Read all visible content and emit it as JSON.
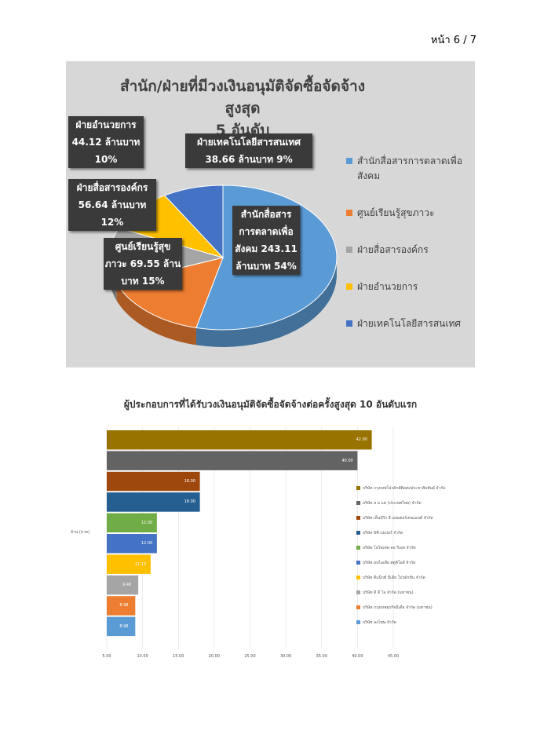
{
  "page": {
    "number": "หน้า 6 / 7"
  },
  "chart_data": [
    {
      "type": "pie",
      "title": "สำนัก/ฝ่ายที่มีวงเงินอนุมัติจัดซื้อจัดจ้างสูงสุด 5 อันดับ",
      "title_line1": "สำนัก/ฝ่ายที่มีวงเงินอนุมัติจัดซื้อจัดจ้างสูงสุด",
      "title_line2": "5 อันดับ",
      "unit": "ล้านบาท",
      "legend_position": "right",
      "slices": [
        {
          "name": "สำนักสื่อสารการตลาดเพื่อสังคม",
          "value": 243.11,
          "percent": 54,
          "color": "#5b9bd5",
          "label_lines": [
            "สำนักสื่อสาร",
            "การตลาดเพื่อ",
            "สังคม 243.11",
            "ล้านบาท 54%"
          ]
        },
        {
          "name": "ศูนย์เรียนรู้สุขภาวะ",
          "value": 69.55,
          "percent": 15,
          "color": "#ed7d31",
          "label_lines": [
            "ศูนย์เรียนรู้สุข",
            "ภาวะ 69.55 ล้าน",
            "บาท 15%"
          ]
        },
        {
          "name": "ฝ่ายสื่อสารองค์กร",
          "value": 56.64,
          "percent": 12,
          "color": "#a5a5a5",
          "label_lines": [
            "ฝ่ายสื่อสารองค์กร",
            "56.64 ล้านบาท",
            "12%"
          ]
        },
        {
          "name": "ฝ่ายอำนวยการ",
          "value": 44.12,
          "percent": 10,
          "color": "#ffc000",
          "label_lines": [
            "ฝ่ายอำนวยการ",
            "44.12 ล้านบาท",
            "10%"
          ]
        },
        {
          "name": "ฝ่ายเทคโนโลยีสารสนเทศ",
          "value": 38.66,
          "percent": 9,
          "color": "#4472c4",
          "label_lines": [
            "ฝ่ายเทคโนโลยีสารสนเทศ",
            "38.66 ล้านบาท 9%"
          ]
        }
      ]
    },
    {
      "type": "bar",
      "orientation": "horizontal",
      "title": "ผู้ประกอบการที่ได้รับวงเงินอนุมัติจัดซื้อจัดจ้างต่อครั้งสูงสุด 10 อันดับแรก",
      "ylabel": "ล้าน (บาท)",
      "xlim": [
        5,
        45
      ],
      "xticks": [
        "5.00",
        "10.00",
        "15.00",
        "20.00",
        "25.00",
        "30.00",
        "35.00",
        "40.00",
        "45.00"
      ],
      "legend_position": "right",
      "series": [
        {
          "name": "บริษัท กรุงเทพโปรดักส์ติดต่อประชาสัมพันธ์ จำกัด",
          "value": 42.0,
          "label": "42.00",
          "color": "#997300"
        },
        {
          "name": "บริษัท ส ม แต (ประเทศไทย) จำกัด",
          "value": 40.0,
          "label": "40.00",
          "color": "#636363"
        },
        {
          "name": "บริษัท เท็นบีวิร จี เอนเตอร์เทนเมนต์ จำกัด",
          "value": 18.0,
          "label": "18.00",
          "color": "#9e480e"
        },
        {
          "name": "บริษัท บิซี เปเปอร์ จำกัด",
          "value": 18.0,
          "label": "18.00",
          "color": "#255e91"
        },
        {
          "name": "บริษัท โอไทเทพ คอ ริเอท จำกัด",
          "value": 12.0,
          "label": "12.00",
          "color": "#70ad47"
        },
        {
          "name": "บริษัท ผนไอเดีย สตูดิโอส์ จำกัด",
          "value": 12.0,
          "label": "12.00",
          "color": "#4472c4"
        },
        {
          "name": "บริษัท ดีแม็กซ์ มีเดีย โปรดักชั่น จำกัด",
          "value": 11.13,
          "label": "11.13",
          "color": "#ffc000"
        },
        {
          "name": "บริษัท ดี ดี ไอ จำกัด (มหาชน)",
          "value": 9.4,
          "label": "9.40",
          "color": "#a5a5a5"
        },
        {
          "name": "บริษัท กรุงเทพธุรกิจมีเดีย จำกัด (มหาชน)",
          "value": 8.98,
          "label": "8.98",
          "color": "#ed7d31"
        },
        {
          "name": "บริษัท ลงโฆษ จำกัด",
          "value": 8.98,
          "label": "8.98",
          "color": "#5b9bd5"
        }
      ]
    }
  ]
}
